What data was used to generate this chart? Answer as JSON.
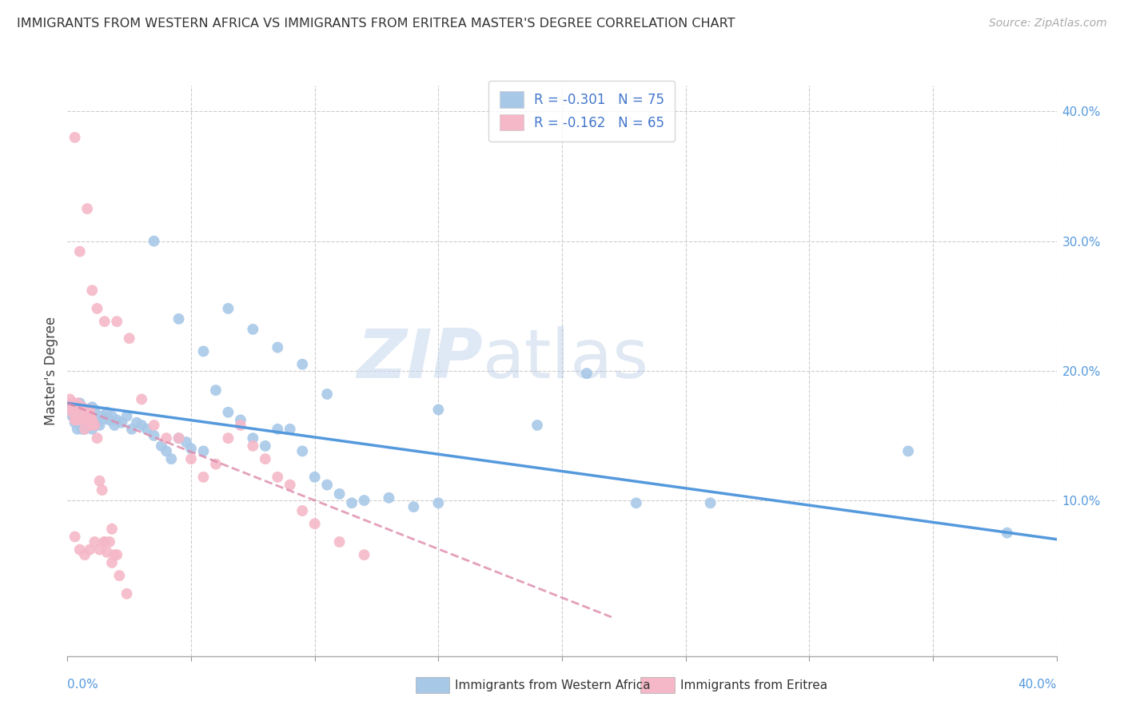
{
  "title": "IMMIGRANTS FROM WESTERN AFRICA VS IMMIGRANTS FROM ERITREA MASTER'S DEGREE CORRELATION CHART",
  "source": "Source: ZipAtlas.com",
  "ylabel": "Master's Degree",
  "xlim": [
    0.0,
    0.4
  ],
  "ylim": [
    -0.02,
    0.42
  ],
  "legend_R1": "R = -0.301",
  "legend_N1": "N = 75",
  "legend_R2": "R = -0.162",
  "legend_N2": "N = 65",
  "color_blue": "#a8c8e8",
  "color_pink": "#f5b8c8",
  "line_color_blue": "#5599dd",
  "line_color_pink": "#dd88aa",
  "watermark_zip": "ZIP",
  "watermark_atlas": "atlas",
  "legend_label_blue": "Immigrants from Western Africa",
  "legend_label_pink": "Immigrants from Eritrea",
  "blue_x": [
    0.001,
    0.002,
    0.002,
    0.003,
    0.003,
    0.004,
    0.004,
    0.005,
    0.005,
    0.006,
    0.006,
    0.007,
    0.007,
    0.008,
    0.008,
    0.009,
    0.009,
    0.01,
    0.01,
    0.011,
    0.011,
    0.012,
    0.013,
    0.014,
    0.015,
    0.016,
    0.017,
    0.018,
    0.019,
    0.02,
    0.022,
    0.024,
    0.026,
    0.028,
    0.03,
    0.032,
    0.035,
    0.038,
    0.04,
    0.042,
    0.045,
    0.048,
    0.05,
    0.055,
    0.06,
    0.065,
    0.07,
    0.075,
    0.08,
    0.085,
    0.09,
    0.095,
    0.1,
    0.105,
    0.11,
    0.115,
    0.12,
    0.13,
    0.14,
    0.15,
    0.065,
    0.075,
    0.085,
    0.095,
    0.105,
    0.15,
    0.19,
    0.21,
    0.23,
    0.26,
    0.035,
    0.045,
    0.055,
    0.34,
    0.38
  ],
  "blue_y": [
    0.17,
    0.165,
    0.175,
    0.16,
    0.17,
    0.165,
    0.155,
    0.165,
    0.175,
    0.155,
    0.17,
    0.16,
    0.155,
    0.165,
    0.17,
    0.158,
    0.165,
    0.172,
    0.155,
    0.163,
    0.17,
    0.16,
    0.158,
    0.165,
    0.163,
    0.168,
    0.162,
    0.165,
    0.158,
    0.162,
    0.16,
    0.165,
    0.155,
    0.16,
    0.158,
    0.155,
    0.15,
    0.142,
    0.138,
    0.132,
    0.148,
    0.145,
    0.14,
    0.138,
    0.185,
    0.168,
    0.162,
    0.148,
    0.142,
    0.155,
    0.155,
    0.138,
    0.118,
    0.112,
    0.105,
    0.098,
    0.1,
    0.102,
    0.095,
    0.098,
    0.248,
    0.232,
    0.218,
    0.205,
    0.182,
    0.17,
    0.158,
    0.198,
    0.098,
    0.098,
    0.3,
    0.24,
    0.215,
    0.138,
    0.075
  ],
  "pink_x": [
    0.001,
    0.001,
    0.002,
    0.002,
    0.003,
    0.003,
    0.004,
    0.004,
    0.005,
    0.005,
    0.006,
    0.006,
    0.007,
    0.007,
    0.008,
    0.008,
    0.009,
    0.009,
    0.01,
    0.01,
    0.011,
    0.012,
    0.013,
    0.014,
    0.015,
    0.016,
    0.017,
    0.018,
    0.019,
    0.02,
    0.003,
    0.005,
    0.008,
    0.01,
    0.012,
    0.015,
    0.02,
    0.025,
    0.03,
    0.035,
    0.04,
    0.045,
    0.05,
    0.055,
    0.06,
    0.065,
    0.07,
    0.075,
    0.08,
    0.085,
    0.09,
    0.095,
    0.1,
    0.11,
    0.12,
    0.003,
    0.005,
    0.007,
    0.009,
    0.011,
    0.013,
    0.015,
    0.018,
    0.021,
    0.024
  ],
  "pink_y": [
    0.178,
    0.172,
    0.168,
    0.175,
    0.162,
    0.17,
    0.175,
    0.162,
    0.165,
    0.172,
    0.162,
    0.172,
    0.165,
    0.155,
    0.168,
    0.162,
    0.165,
    0.17,
    0.162,
    0.158,
    0.158,
    0.148,
    0.115,
    0.108,
    0.068,
    0.06,
    0.068,
    0.078,
    0.058,
    0.058,
    0.38,
    0.292,
    0.325,
    0.262,
    0.248,
    0.238,
    0.238,
    0.225,
    0.178,
    0.158,
    0.148,
    0.148,
    0.132,
    0.118,
    0.128,
    0.148,
    0.158,
    0.142,
    0.132,
    0.118,
    0.112,
    0.092,
    0.082,
    0.068,
    0.058,
    0.072,
    0.062,
    0.058,
    0.062,
    0.068,
    0.062,
    0.068,
    0.052,
    0.042,
    0.028
  ],
  "blue_line_x": [
    0.0,
    0.4
  ],
  "blue_line_y": [
    0.175,
    0.07
  ],
  "pink_line_x": [
    0.0,
    0.22
  ],
  "pink_line_y": [
    0.175,
    0.01
  ]
}
